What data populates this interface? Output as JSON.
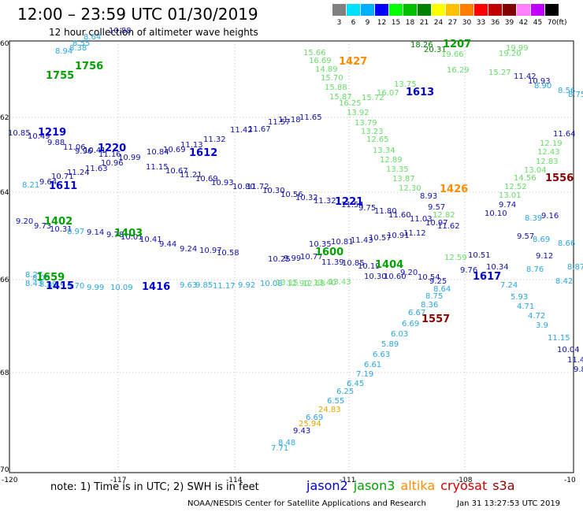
{
  "header": {
    "title": "12:00 – 23:59 UTC 01/30/2019",
    "subtitle": "12 hour collection of altimeter wave heights"
  },
  "scale": {
    "unit": "(ft)",
    "bins": [
      {
        "label": "3",
        "color": "#808080"
      },
      {
        "label": "6",
        "color": "#00e0ff"
      },
      {
        "label": "9",
        "color": "#00b0ff"
      },
      {
        "label": "12",
        "color": "#0000ff"
      },
      {
        "label": "15",
        "color": "#00ff00"
      },
      {
        "label": "18",
        "color": "#00c000"
      },
      {
        "label": "21",
        "color": "#008000"
      },
      {
        "label": "24",
        "color": "#ffff00"
      },
      {
        "label": "27",
        "color": "#ffc000"
      },
      {
        "label": "30",
        "color": "#ff8000"
      },
      {
        "label": "33",
        "color": "#ff0000"
      },
      {
        "label": "36",
        "color": "#c00000"
      },
      {
        "label": "39",
        "color": "#800000"
      },
      {
        "label": "42",
        "color": "#ff80ff"
      },
      {
        "label": "45",
        "color": "#c000ff"
      },
      {
        "label": "70",
        "color": "#000000"
      }
    ]
  },
  "axes": {
    "lat_labels": [
      "60",
      "62",
      "64",
      "66",
      "68",
      "70"
    ],
    "lon_labels": [
      "-120",
      "-117",
      "-114",
      "-111",
      "-108",
      "-10"
    ]
  },
  "colors": {
    "jason2": "#0000cc",
    "jason3": "#00a000",
    "altika": "#ff8c00",
    "cryosat": "#cc0000",
    "s3a": "#8b0000",
    "sea_light": "#2aa6e0",
    "sea_green": "#66dd66",
    "sea_mid": "#18b2d8",
    "dark_green": "#008000",
    "amber": "#e0a800",
    "orange": "#ff8c00",
    "maroon": "#8b0000",
    "navy": "#1010b0"
  },
  "observations": [
    {
      "t": "15.66",
      "c": "sea_green"
    },
    {
      "t": "16.69",
      "c": "sea_green"
    },
    {
      "t": "14.89",
      "c": "sea_green"
    },
    {
      "t": "15.70",
      "c": "sea_green"
    },
    {
      "t": "15.88",
      "c": "sea_green"
    },
    {
      "t": "15.87",
      "c": "sea_green"
    },
    {
      "t": "15.72",
      "c": "sea_green"
    },
    {
      "t": "16.07",
      "c": "sea_green"
    },
    {
      "t": "16.25",
      "c": "sea_green"
    },
    {
      "t": "13.92",
      "c": "sea_green"
    },
    {
      "t": "13.79",
      "c": "sea_green"
    },
    {
      "t": "13.23",
      "c": "sea_green"
    },
    {
      "t": "12.65",
      "c": "sea_green"
    },
    {
      "t": "13.34",
      "c": "sea_green"
    },
    {
      "t": "12.89",
      "c": "sea_green"
    },
    {
      "t": "13.35",
      "c": "sea_green"
    },
    {
      "t": "13.87",
      "c": "sea_green"
    },
    {
      "t": "12.30",
      "c": "sea_green"
    },
    {
      "t": "18.26",
      "c": "dark_green"
    },
    {
      "t": "20.31",
      "c": "dark_green"
    },
    {
      "t": "19.66",
      "c": "sea_green"
    },
    {
      "t": "19.99",
      "c": "sea_green"
    },
    {
      "t": "19.20",
      "c": "sea_green"
    },
    {
      "t": "16.29",
      "c": "sea_green"
    },
    {
      "t": "15.27",
      "c": "sea_green"
    },
    {
      "t": "11.42",
      "c": "navy"
    },
    {
      "t": "10.93",
      "c": "navy"
    },
    {
      "t": "8.90",
      "c": "sea_light"
    },
    {
      "t": "8.56",
      "c": "sea_light"
    },
    {
      "t": "8.75",
      "c": "sea_light"
    },
    {
      "t": "11.64",
      "c": "navy"
    },
    {
      "t": "12.19",
      "c": "sea_green"
    },
    {
      "t": "12.43",
      "c": "sea_green"
    },
    {
      "t": "12.83",
      "c": "sea_green"
    },
    {
      "t": "13.04",
      "c": "sea_green"
    },
    {
      "t": "14.56",
      "c": "sea_green"
    },
    {
      "t": "12.52",
      "c": "sea_green"
    },
    {
      "t": "13.01",
      "c": "sea_green"
    },
    {
      "t": "9.74",
      "c": "navy"
    },
    {
      "t": "10.10",
      "c": "navy"
    },
    {
      "t": "9.16",
      "c": "navy"
    },
    {
      "t": "8.39",
      "c": "sea_light"
    },
    {
      "t": "8.69",
      "c": "sea_light"
    },
    {
      "t": "8.66",
      "c": "sea_light"
    },
    {
      "t": "8.76",
      "c": "sea_light"
    },
    {
      "t": "8.87",
      "c": "sea_light"
    },
    {
      "t": "8.42",
      "c": "sea_light"
    },
    {
      "t": "10.85",
      "c": "navy"
    },
    {
      "t": "10.49",
      "c": "navy"
    },
    {
      "t": "9.88",
      "c": "navy"
    },
    {
      "t": "11.06",
      "c": "navy"
    },
    {
      "t": "9.96",
      "c": "navy"
    },
    {
      "t": "10.41",
      "c": "navy"
    },
    {
      "t": "11.16",
      "c": "navy"
    },
    {
      "t": "10.99",
      "c": "navy"
    },
    {
      "t": "10.84",
      "c": "navy"
    },
    {
      "t": "10.69",
      "c": "navy"
    },
    {
      "t": "11.13",
      "c": "navy"
    },
    {
      "t": "11.32",
      "c": "navy"
    },
    {
      "t": "11.42",
      "c": "navy"
    },
    {
      "t": "11.67",
      "c": "navy"
    },
    {
      "t": "11.57",
      "c": "navy"
    },
    {
      "t": "11.18",
      "c": "navy"
    },
    {
      "t": "11.65",
      "c": "navy"
    },
    {
      "t": "11.15",
      "c": "navy"
    },
    {
      "t": "10.67",
      "c": "navy"
    },
    {
      "t": "11.21",
      "c": "navy"
    },
    {
      "t": "10.69",
      "c": "navy"
    },
    {
      "t": "10.93",
      "c": "navy"
    },
    {
      "t": "10.80",
      "c": "navy"
    },
    {
      "t": "11.72",
      "c": "navy"
    },
    {
      "t": "10.30",
      "c": "navy"
    },
    {
      "t": "10.56",
      "c": "navy"
    },
    {
      "t": "10.32",
      "c": "navy"
    },
    {
      "t": "11.32",
      "c": "navy"
    },
    {
      "t": "11.54",
      "c": "navy"
    },
    {
      "t": "9.75",
      "c": "navy"
    },
    {
      "t": "11.80",
      "c": "navy"
    },
    {
      "t": "11.60",
      "c": "navy"
    },
    {
      "t": "11.03",
      "c": "navy"
    },
    {
      "t": "10.97",
      "c": "navy"
    },
    {
      "t": "11.62",
      "c": "navy"
    },
    {
      "t": "12.82",
      "c": "sea_green"
    },
    {
      "t": "9.57",
      "c": "navy"
    },
    {
      "t": "8.93",
      "c": "navy"
    },
    {
      "t": "8.21",
      "c": "sea_light"
    },
    {
      "t": "9.64",
      "c": "navy"
    },
    {
      "t": "10.71",
      "c": "navy"
    },
    {
      "t": "11.24",
      "c": "navy"
    },
    {
      "t": "11.63",
      "c": "navy"
    },
    {
      "t": "10.96",
      "c": "navy"
    },
    {
      "t": "9.20",
      "c": "navy"
    },
    {
      "t": "9.73",
      "c": "navy"
    },
    {
      "t": "10.31",
      "c": "navy"
    },
    {
      "t": "8.97",
      "c": "sea_light"
    },
    {
      "t": "9.14",
      "c": "navy"
    },
    {
      "t": "9.78",
      "c": "navy"
    },
    {
      "t": "10.01",
      "c": "navy"
    },
    {
      "t": "10.41",
      "c": "navy"
    },
    {
      "t": "9.44",
      "c": "navy"
    },
    {
      "t": "9.24",
      "c": "navy"
    },
    {
      "t": "10.97",
      "c": "navy"
    },
    {
      "t": "10.58",
      "c": "navy"
    },
    {
      "t": "10.35",
      "c": "navy"
    },
    {
      "t": "10.81",
      "c": "navy"
    },
    {
      "t": "11.43",
      "c": "navy"
    },
    {
      "t": "10.57",
      "c": "navy"
    },
    {
      "t": "10.91",
      "c": "navy"
    },
    {
      "t": "11.12",
      "c": "navy"
    },
    {
      "t": "12.59",
      "c": "sea_green"
    },
    {
      "t": "9.76",
      "c": "navy"
    },
    {
      "t": "10.51",
      "c": "navy"
    },
    {
      "t": "10.34",
      "c": "navy"
    },
    {
      "t": "9.57",
      "c": "navy"
    },
    {
      "t": "9.12",
      "c": "navy"
    },
    {
      "t": "10.25",
      "c": "navy"
    },
    {
      "t": "9.99",
      "c": "navy"
    },
    {
      "t": "10.77",
      "c": "navy"
    },
    {
      "t": "11.39",
      "c": "navy"
    },
    {
      "t": "10.85",
      "c": "navy"
    },
    {
      "t": "10.19",
      "c": "navy"
    },
    {
      "t": "10.30",
      "c": "navy"
    },
    {
      "t": "10.60",
      "c": "navy"
    },
    {
      "t": "9.20",
      "c": "navy"
    },
    {
      "t": "10.54",
      "c": "navy"
    },
    {
      "t": "9.25",
      "c": "navy"
    },
    {
      "t": "8.64",
      "c": "sea_light"
    },
    {
      "t": "8.75",
      "c": "sea_light"
    },
    {
      "t": "8.36",
      "c": "sea_light"
    },
    {
      "t": "6.67",
      "c": "sea_light"
    },
    {
      "t": "6.69",
      "c": "sea_light"
    },
    {
      "t": "6.03",
      "c": "sea_light"
    },
    {
      "t": "5.89",
      "c": "sea_light"
    },
    {
      "t": "6.63",
      "c": "sea_light"
    },
    {
      "t": "6.61",
      "c": "sea_light"
    },
    {
      "t": "7.19",
      "c": "sea_light"
    },
    {
      "t": "6.45",
      "c": "sea_light"
    },
    {
      "t": "6.25",
      "c": "sea_light"
    },
    {
      "t": "6.55",
      "c": "sea_light"
    },
    {
      "t": "24.83",
      "c": "amber"
    },
    {
      "t": "6.69",
      "c": "sea_light"
    },
    {
      "t": "25.94",
      "c": "amber"
    },
    {
      "t": "9.43",
      "c": "navy"
    },
    {
      "t": "8.48",
      "c": "sea_light"
    },
    {
      "t": "7.71",
      "c": "sea_light"
    },
    {
      "t": "7.24",
      "c": "sea_light"
    },
    {
      "t": "5.93",
      "c": "sea_light"
    },
    {
      "t": "4.71",
      "c": "sea_light"
    },
    {
      "t": "4.72",
      "c": "sea_light"
    },
    {
      "t": "3.9",
      "c": "sea_light"
    },
    {
      "t": "11.15",
      "c": "sea_light"
    },
    {
      "t": "10.04",
      "c": "navy"
    },
    {
      "t": "11.43",
      "c": "navy"
    },
    {
      "t": "9.88",
      "c": "navy"
    },
    {
      "t": "10.88",
      "c": "navy"
    },
    {
      "t": "8.64",
      "c": "sea_light"
    },
    {
      "t": "8.55",
      "c": "sea_light"
    },
    {
      "t": "8.38",
      "c": "sea_light"
    },
    {
      "t": "8.94",
      "c": "sea_light"
    },
    {
      "t": "8.27",
      "c": "sea_light"
    },
    {
      "t": "8.05",
      "c": "sea_light"
    },
    {
      "t": "8.43",
      "c": "sea_light"
    },
    {
      "t": "8.29",
      "c": "sea_light"
    },
    {
      "t": "9.55",
      "c": "sea_light"
    },
    {
      "t": "9.70",
      "c": "sea_light"
    },
    {
      "t": "9.99",
      "c": "sea_light"
    },
    {
      "t": "10.09",
      "c": "sea_light"
    },
    {
      "t": "9.63",
      "c": "sea_light"
    },
    {
      "t": "9.85",
      "c": "sea_light"
    },
    {
      "t": "11.17",
      "c": "sea_light"
    },
    {
      "t": "9.92",
      "c": "sea_light"
    },
    {
      "t": "10.08",
      "c": "sea_light"
    },
    {
      "t": "13.15",
      "c": "sea_green"
    },
    {
      "t": "12.90",
      "c": "sea_green"
    },
    {
      "t": "12.68",
      "c": "sea_green"
    },
    {
      "t": "13.40",
      "c": "sea_green"
    },
    {
      "t": "13.43",
      "c": "sea_green"
    },
    {
      "t": "13.75",
      "c": "sea_green"
    }
  ],
  "passes": [
    {
      "t": "1219",
      "c": "jason2"
    },
    {
      "t": "1220",
      "c": "jason2"
    },
    {
      "t": "1612",
      "c": "jason2"
    },
    {
      "t": "1611",
      "c": "jason2"
    },
    {
      "t": "1221",
      "c": "jason2"
    },
    {
      "t": "1613",
      "c": "jason2"
    },
    {
      "t": "1402",
      "c": "jason3"
    },
    {
      "t": "1403",
      "c": "jason3"
    },
    {
      "t": "1404",
      "c": "jason3"
    },
    {
      "t": "1600",
      "c": "jason3"
    },
    {
      "t": "1207",
      "c": "jason3"
    },
    {
      "t": "1659",
      "c": "jason3"
    },
    {
      "t": "1415",
      "c": "jason2"
    },
    {
      "t": "1416",
      "c": "jason2"
    },
    {
      "t": "1617",
      "c": "jason2"
    },
    {
      "t": "1427",
      "c": "altika"
    },
    {
      "t": "1426",
      "c": "altika"
    },
    {
      "t": "1557",
      "c": "s3a"
    },
    {
      "t": "1556",
      "c": "s3a"
    },
    {
      "t": "1755",
      "c": "jason3"
    },
    {
      "t": "1756",
      "c": "jason3"
    }
  ],
  "footer": {
    "note": "note: 1) Time is in UTC; 2) SWH is in feet",
    "legend": [
      {
        "name": "jason2",
        "c": "jason2"
      },
      {
        "name": "jason3",
        "c": "jason3"
      },
      {
        "name": "altika",
        "c": "altika"
      },
      {
        "name": "cryosat",
        "c": "cryosat"
      },
      {
        "name": "s3a",
        "c": "s3a"
      }
    ],
    "credit": "NOAA/NESDIS Center for Satellite Applications and Research",
    "timestamp": "Jan 31 13:27:53 UTC 2019"
  }
}
